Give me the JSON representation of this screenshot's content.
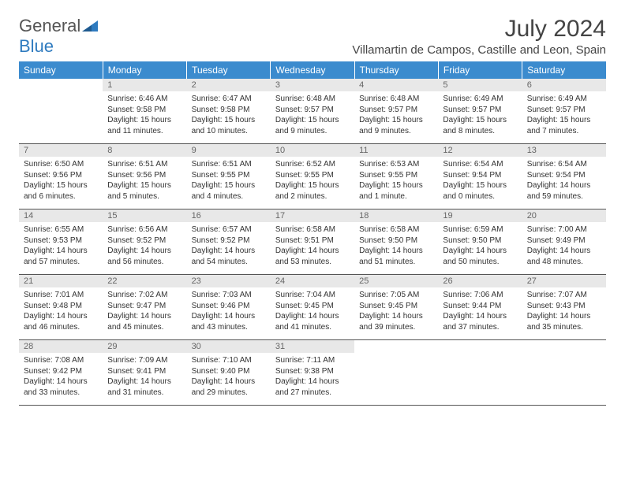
{
  "logo": {
    "text1": "General",
    "text2": "Blue",
    "color1": "#555555",
    "color2": "#2f7bbf"
  },
  "title": "July 2024",
  "location": "Villamartin de Campos, Castille and Leon, Spain",
  "dayHeaders": [
    "Sunday",
    "Monday",
    "Tuesday",
    "Wednesday",
    "Thursday",
    "Friday",
    "Saturday"
  ],
  "headerBg": "#3b8bce",
  "dayNumBg": "#e8e8e8",
  "weeks": [
    [
      null,
      {
        "n": "1",
        "sr": "6:46 AM",
        "ss": "9:58 PM",
        "dl": "15 hours and 11 minutes."
      },
      {
        "n": "2",
        "sr": "6:47 AM",
        "ss": "9:58 PM",
        "dl": "15 hours and 10 minutes."
      },
      {
        "n": "3",
        "sr": "6:48 AM",
        "ss": "9:57 PM",
        "dl": "15 hours and 9 minutes."
      },
      {
        "n": "4",
        "sr": "6:48 AM",
        "ss": "9:57 PM",
        "dl": "15 hours and 9 minutes."
      },
      {
        "n": "5",
        "sr": "6:49 AM",
        "ss": "9:57 PM",
        "dl": "15 hours and 8 minutes."
      },
      {
        "n": "6",
        "sr": "6:49 AM",
        "ss": "9:57 PM",
        "dl": "15 hours and 7 minutes."
      }
    ],
    [
      {
        "n": "7",
        "sr": "6:50 AM",
        "ss": "9:56 PM",
        "dl": "15 hours and 6 minutes."
      },
      {
        "n": "8",
        "sr": "6:51 AM",
        "ss": "9:56 PM",
        "dl": "15 hours and 5 minutes."
      },
      {
        "n": "9",
        "sr": "6:51 AM",
        "ss": "9:55 PM",
        "dl": "15 hours and 4 minutes."
      },
      {
        "n": "10",
        "sr": "6:52 AM",
        "ss": "9:55 PM",
        "dl": "15 hours and 2 minutes."
      },
      {
        "n": "11",
        "sr": "6:53 AM",
        "ss": "9:55 PM",
        "dl": "15 hours and 1 minute."
      },
      {
        "n": "12",
        "sr": "6:54 AM",
        "ss": "9:54 PM",
        "dl": "15 hours and 0 minutes."
      },
      {
        "n": "13",
        "sr": "6:54 AM",
        "ss": "9:54 PM",
        "dl": "14 hours and 59 minutes."
      }
    ],
    [
      {
        "n": "14",
        "sr": "6:55 AM",
        "ss": "9:53 PM",
        "dl": "14 hours and 57 minutes."
      },
      {
        "n": "15",
        "sr": "6:56 AM",
        "ss": "9:52 PM",
        "dl": "14 hours and 56 minutes."
      },
      {
        "n": "16",
        "sr": "6:57 AM",
        "ss": "9:52 PM",
        "dl": "14 hours and 54 minutes."
      },
      {
        "n": "17",
        "sr": "6:58 AM",
        "ss": "9:51 PM",
        "dl": "14 hours and 53 minutes."
      },
      {
        "n": "18",
        "sr": "6:58 AM",
        "ss": "9:50 PM",
        "dl": "14 hours and 51 minutes."
      },
      {
        "n": "19",
        "sr": "6:59 AM",
        "ss": "9:50 PM",
        "dl": "14 hours and 50 minutes."
      },
      {
        "n": "20",
        "sr": "7:00 AM",
        "ss": "9:49 PM",
        "dl": "14 hours and 48 minutes."
      }
    ],
    [
      {
        "n": "21",
        "sr": "7:01 AM",
        "ss": "9:48 PM",
        "dl": "14 hours and 46 minutes."
      },
      {
        "n": "22",
        "sr": "7:02 AM",
        "ss": "9:47 PM",
        "dl": "14 hours and 45 minutes."
      },
      {
        "n": "23",
        "sr": "7:03 AM",
        "ss": "9:46 PM",
        "dl": "14 hours and 43 minutes."
      },
      {
        "n": "24",
        "sr": "7:04 AM",
        "ss": "9:45 PM",
        "dl": "14 hours and 41 minutes."
      },
      {
        "n": "25",
        "sr": "7:05 AM",
        "ss": "9:45 PM",
        "dl": "14 hours and 39 minutes."
      },
      {
        "n": "26",
        "sr": "7:06 AM",
        "ss": "9:44 PM",
        "dl": "14 hours and 37 minutes."
      },
      {
        "n": "27",
        "sr": "7:07 AM",
        "ss": "9:43 PM",
        "dl": "14 hours and 35 minutes."
      }
    ],
    [
      {
        "n": "28",
        "sr": "7:08 AM",
        "ss": "9:42 PM",
        "dl": "14 hours and 33 minutes."
      },
      {
        "n": "29",
        "sr": "7:09 AM",
        "ss": "9:41 PM",
        "dl": "14 hours and 31 minutes."
      },
      {
        "n": "30",
        "sr": "7:10 AM",
        "ss": "9:40 PM",
        "dl": "14 hours and 29 minutes."
      },
      {
        "n": "31",
        "sr": "7:11 AM",
        "ss": "9:38 PM",
        "dl": "14 hours and 27 minutes."
      },
      null,
      null,
      null
    ]
  ],
  "labels": {
    "sunrise": "Sunrise:",
    "sunset": "Sunset:",
    "daylight": "Daylight:"
  }
}
